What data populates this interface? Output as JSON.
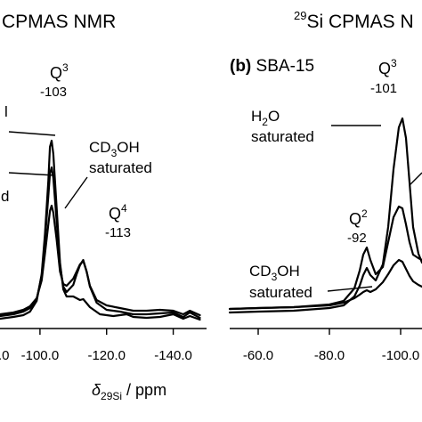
{
  "chart_data": [
    {
      "type": "line",
      "panel_label": "",
      "title": "CPMAS NMR",
      "xlabel_symbol": "δ",
      "xlabel_sub": "29Si",
      "xlabel_rest": " / ppm",
      "xlim": [
        -88,
        -150
      ],
      "xticks": [
        -100.0,
        -120.0,
        -140.0
      ],
      "xtick_labels": [
        "-100.0",
        "-120.0",
        "-140.0"
      ],
      "edge_tick_label": ".0",
      "series": [
        {
          "label_lines": [
            "",
            ""
          ],
          "points": [
            [
              -88,
              5
            ],
            [
              -92,
              7
            ],
            [
              -95,
              9
            ],
            [
              -97,
              13
            ],
            [
              -99,
              25
            ],
            [
              -100.5,
              55
            ],
            [
              -101.5,
              100
            ],
            [
              -102.5,
              160
            ],
            [
              -103,
              198
            ],
            [
              -103.5,
              205
            ],
            [
              -104,
              190
            ],
            [
              -105,
              130
            ],
            [
              -106,
              68
            ],
            [
              -107,
              38
            ],
            [
              -108,
              30
            ],
            [
              -110,
              30
            ],
            [
              -111,
              28
            ],
            [
              -112,
              26
            ],
            [
              -113,
              27
            ],
            [
              -115,
              18
            ],
            [
              -118,
              10
            ],
            [
              -122,
              8
            ],
            [
              -126,
              10
            ],
            [
              -128,
              7
            ],
            [
              -132,
              6
            ],
            [
              -136,
              7
            ],
            [
              -140,
              10
            ],
            [
              -143,
              5
            ],
            [
              -145,
              8
            ],
            [
              -148,
              4
            ]
          ]
        },
        {
          "label_lines": [
            "",
            "d"
          ],
          "points": [
            [
              -88,
              5
            ],
            [
              -92,
              7
            ],
            [
              -95,
              10
            ],
            [
              -97,
              14
            ],
            [
              -99,
              24
            ],
            [
              -100.5,
              50
            ],
            [
              -101.5,
              90
            ],
            [
              -102.5,
              140
            ],
            [
              -103,
              165
            ],
            [
              -103.5,
              172
            ],
            [
              -104,
              160
            ],
            [
              -105,
              112
            ],
            [
              -106,
              62
            ],
            [
              -107,
              38
            ],
            [
              -108,
              32
            ],
            [
              -110,
              40
            ],
            [
              -111,
              52
            ],
            [
              -112,
              62
            ],
            [
              -113,
              68
            ],
            [
              -114,
              55
            ],
            [
              -115,
              38
            ],
            [
              -117,
              20
            ],
            [
              -120,
              12
            ],
            [
              -124,
              10
            ],
            [
              -128,
              7
            ],
            [
              -132,
              7
            ],
            [
              -136,
              8
            ],
            [
              -140,
              9
            ],
            [
              -143,
              4
            ],
            [
              -145,
              9
            ],
            [
              -148,
              3
            ]
          ]
        },
        {
          "label_lines": [
            "CD3OH",
            "saturated"
          ],
          "points": [
            [
              -88,
              4
            ],
            [
              -92,
              6
            ],
            [
              -95,
              9
            ],
            [
              -97,
              13
            ],
            [
              -99,
              22
            ],
            [
              -100.5,
              42
            ],
            [
              -101.5,
              72
            ],
            [
              -102.5,
              105
            ],
            [
              -103,
              120
            ],
            [
              -103.5,
              126
            ],
            [
              -104,
              118
            ],
            [
              -105,
              88
            ],
            [
              -106,
              52
            ],
            [
              -107,
              38
            ],
            [
              -108,
              36
            ],
            [
              -110,
              44
            ],
            [
              -111,
              52
            ],
            [
              -112,
              60
            ],
            [
              -113,
              64
            ],
            [
              -114,
              52
            ],
            [
              -115,
              36
            ],
            [
              -117,
              20
            ],
            [
              -120,
              14
            ],
            [
              -124,
              11
            ],
            [
              -128,
              8
            ],
            [
              -132,
              8
            ],
            [
              -136,
              9
            ],
            [
              -140,
              8
            ],
            [
              -143,
              4
            ],
            [
              -145,
              8
            ],
            [
              -148,
              3
            ]
          ]
        }
      ],
      "annotations": [
        {
          "head": "Q",
          "sup": "3",
          "value": "-103"
        },
        {
          "head": "Q",
          "sup": "4",
          "value": "-113"
        }
      ],
      "grid": false
    },
    {
      "type": "line",
      "panel_label": "(b) SBA-15",
      "title_sup": "29",
      "title": "Si CPMAS N",
      "xlim": [
        -52,
        -106
      ],
      "xticks": [
        -60.0,
        -80.0,
        -100.0
      ],
      "xtick_labels": [
        "-60.0",
        "-80.0",
        "-100.0"
      ],
      "series": [
        {
          "label_lines": [
            "H2O",
            "saturated"
          ],
          "points": [
            [
              -52,
              4
            ],
            [
              -60,
              5
            ],
            [
              -70,
              6
            ],
            [
              -80,
              9
            ],
            [
              -84,
              12
            ],
            [
              -87,
              22
            ],
            [
              -88.5,
              34
            ],
            [
              -89.5,
              46
            ],
            [
              -90.5,
              54
            ],
            [
              -91.5,
              46
            ],
            [
              -93,
              40
            ],
            [
              -95,
              58
            ],
            [
              -96.5,
              100
            ],
            [
              -98,
              165
            ],
            [
              -99.5,
              212
            ],
            [
              -100.5,
              222
            ],
            [
              -101.5,
              200
            ],
            [
              -102.5,
              150
            ],
            [
              -103.5,
              100
            ],
            [
              -105,
              70
            ],
            [
              -106,
              60
            ]
          ]
        },
        {
          "label_lines": [
            "",
            ""
          ],
          "points": [
            [
              -52,
              5
            ],
            [
              -60,
              6
            ],
            [
              -70,
              7
            ],
            [
              -80,
              10
            ],
            [
              -84,
              14
            ],
            [
              -87,
              28
            ],
            [
              -88.5,
              48
            ],
            [
              -89.5,
              66
            ],
            [
              -90.5,
              74
            ],
            [
              -91.5,
              60
            ],
            [
              -93,
              44
            ],
            [
              -95,
              52
            ],
            [
              -96.5,
              80
            ],
            [
              -98,
              108
            ],
            [
              -99.5,
              120
            ],
            [
              -100.5,
              118
            ],
            [
              -101.5,
              100
            ],
            [
              -102.5,
              80
            ],
            [
              -103.5,
              66
            ],
            [
              -105,
              62
            ],
            [
              -106,
              60
            ]
          ]
        },
        {
          "label_lines": [
            "CD3OH",
            "saturated"
          ],
          "points": [
            [
              -52,
              3
            ],
            [
              -60,
              4
            ],
            [
              -70,
              5
            ],
            [
              -80,
              7
            ],
            [
              -84,
              10
            ],
            [
              -87,
              15
            ],
            [
              -88.5,
              19
            ],
            [
              -89.5,
              22
            ],
            [
              -90.5,
              24
            ],
            [
              -91.5,
              22
            ],
            [
              -93,
              25
            ],
            [
              -95,
              33
            ],
            [
              -96.5,
              42
            ],
            [
              -98,
              52
            ],
            [
              -99.5,
              58
            ],
            [
              -100.5,
              56
            ],
            [
              -101.5,
              48
            ],
            [
              -102.5,
              40
            ],
            [
              -103.5,
              34
            ],
            [
              -105,
              30
            ],
            [
              -106,
              28
            ]
          ]
        }
      ],
      "annotations": [
        {
          "head": "Q",
          "sup": "3",
          "value": "-101"
        },
        {
          "head": "Q",
          "sup": "2",
          "value": "-92"
        }
      ],
      "grid": false
    }
  ]
}
